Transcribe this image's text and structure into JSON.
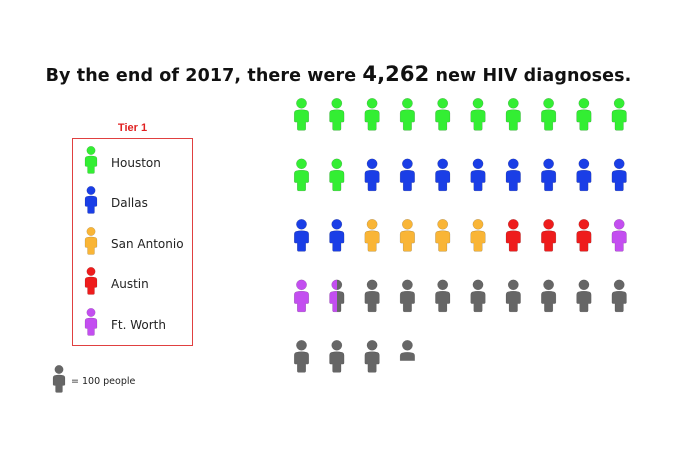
{
  "title": {
    "before": "By the end of 2017, there were ",
    "highlight": "4,262",
    "after": " new HIV diagnoses."
  },
  "legend": {
    "title": "Tier 1",
    "items": [
      {
        "label": "Houston",
        "color": "#33ee33"
      },
      {
        "label": "Dallas",
        "color": "#1a3ee6"
      },
      {
        "label": "San Antonio",
        "color": "#f9b536"
      },
      {
        "label": "Austin",
        "color": "#ee1c1c"
      },
      {
        "label": "Ft. Worth",
        "color": "#c34ef0"
      }
    ]
  },
  "scale_note": {
    "label": "= 100 people",
    "color": "#666666"
  },
  "chart_data": {
    "type": "pictograph",
    "unit": "100 people",
    "total": 4262,
    "title": "By the end of 2017, there were 4,262 new HIV diagnoses.",
    "legend_title": "Tier 1",
    "series": [
      {
        "name": "Houston",
        "icons": 12,
        "color": "#33ee33"
      },
      {
        "name": "Dallas",
        "icons": 10,
        "color": "#1a3ee6"
      },
      {
        "name": "San Antonio",
        "icons": 4,
        "color": "#f9b536"
      },
      {
        "name": "Austin",
        "icons": 3,
        "color": "#ee1c1c"
      },
      {
        "name": "Ft. Worth",
        "icons": 2.5,
        "color": "#c34ef0"
      },
      {
        "name": "",
        "icons": 11.62,
        "color": "#666666"
      }
    ],
    "icons_per_row": 10
  }
}
